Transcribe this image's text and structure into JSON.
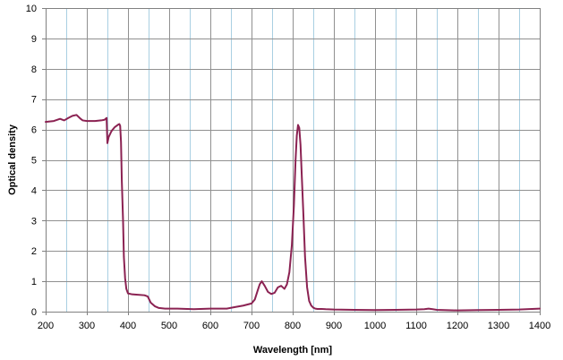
{
  "chart_data": {
    "type": "line",
    "title": "",
    "xlabel": "Wavelength [nm]",
    "ylabel": "Optical density",
    "xlim": [
      200,
      1400
    ],
    "ylim": [
      0,
      10
    ],
    "grid": true,
    "legend": "none",
    "x_ticks": [
      "200",
      "300",
      "400",
      "500",
      "600",
      "700",
      "800",
      "900",
      "1000",
      "1100",
      "1200",
      "1300",
      "1400"
    ],
    "y_ticks": [
      "0",
      "1",
      "2",
      "3",
      "4",
      "5",
      "6",
      "7",
      "8",
      "9",
      "10"
    ],
    "x_minor_step": 50,
    "colors": {
      "series": "#8b2252",
      "grid_major": "#909090",
      "grid_minor": "#a9cfe2",
      "axis": "#808080"
    },
    "series": [
      {
        "x": [
          200,
          220,
          235,
          245,
          255,
          265,
          275,
          285,
          290,
          300,
          320,
          335,
          343,
          348,
          350,
          353,
          360,
          368,
          375,
          379,
          381,
          383,
          385,
          388,
          390,
          393,
          396,
          400,
          410,
          420,
          440,
          448,
          455,
          465,
          475,
          490,
          500,
          520,
          560,
          600,
          640,
          660,
          680,
          700,
          708,
          715,
          720,
          725,
          732,
          740,
          748,
          756,
          764,
          772,
          780,
          786,
          792,
          798,
          803,
          807,
          810,
          813,
          816,
          819,
          822,
          826,
          830,
          835,
          840,
          845,
          850,
          855,
          860,
          870,
          880,
          900,
          950,
          1000,
          1050,
          1100,
          1120,
          1130,
          1140,
          1150,
          1200,
          1250,
          1300,
          1350,
          1400
        ],
        "y": [
          6.25,
          6.28,
          6.35,
          6.3,
          6.38,
          6.45,
          6.48,
          6.35,
          6.3,
          6.28,
          6.28,
          6.3,
          6.32,
          6.38,
          5.55,
          5.75,
          5.95,
          6.08,
          6.15,
          6.18,
          6.12,
          5.6,
          4.3,
          3.0,
          1.8,
          1.1,
          0.75,
          0.6,
          0.57,
          0.56,
          0.54,
          0.5,
          0.3,
          0.18,
          0.12,
          0.1,
          0.1,
          0.1,
          0.08,
          0.1,
          0.1,
          0.15,
          0.2,
          0.27,
          0.4,
          0.7,
          0.9,
          1.0,
          0.85,
          0.65,
          0.58,
          0.62,
          0.8,
          0.85,
          0.75,
          0.9,
          1.3,
          2.2,
          3.5,
          5.0,
          5.8,
          6.15,
          6.05,
          5.5,
          4.5,
          3.2,
          1.8,
          0.8,
          0.35,
          0.2,
          0.13,
          0.1,
          0.09,
          0.09,
          0.08,
          0.07,
          0.06,
          0.05,
          0.06,
          0.07,
          0.08,
          0.1,
          0.08,
          0.06,
          0.04,
          0.05,
          0.06,
          0.07,
          0.1
        ]
      }
    ]
  }
}
